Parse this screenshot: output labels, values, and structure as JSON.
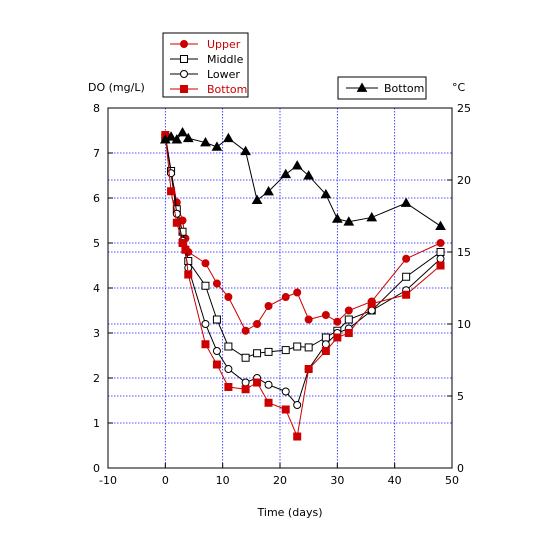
{
  "chart_data": {
    "type": "line",
    "xlabel": "Time (days)",
    "ylabel_left": "DO (mg/L)",
    "ylabel_right": "°C",
    "xlim": [
      -10,
      50
    ],
    "ylim_left": [
      0,
      8
    ],
    "ylim_right": [
      0,
      25
    ],
    "x_ticks": [
      "-10",
      "0",
      "10",
      "20",
      "30",
      "40",
      "50"
    ],
    "y_left_ticks": [
      "0",
      "1",
      "2",
      "3",
      "4",
      "5",
      "6",
      "7",
      "8"
    ],
    "y_right_ticks": [
      "0",
      "5",
      "10",
      "15",
      "20",
      "25"
    ],
    "grid": true,
    "legend_left": [
      {
        "label": "Upper",
        "marker": "filled-circle",
        "color": "#cc0000"
      },
      {
        "label": "Middle",
        "marker": "open-square",
        "color": "#000000"
      },
      {
        "label": "Lower",
        "marker": "open-circle",
        "color": "#000000"
      },
      {
        "label": "Bottom",
        "marker": "filled-square",
        "color": "#cc0000"
      }
    ],
    "legend_right": [
      {
        "label": "Bottom",
        "marker": "filled-triangle",
        "color": "#000000"
      }
    ],
    "series": [
      {
        "name": "Upper",
        "axis": "left",
        "marker": "filled-circle",
        "color": "#cc0000",
        "x": [
          0,
          1,
          2,
          3,
          3.5,
          4,
          7,
          9,
          11,
          14,
          16,
          18,
          21,
          23,
          25,
          28,
          30,
          32,
          36,
          42,
          48
        ],
        "y": [
          7.4,
          6.6,
          5.9,
          5.5,
          5.1,
          4.8,
          4.55,
          4.1,
          3.8,
          3.05,
          3.2,
          3.6,
          3.8,
          3.9,
          3.3,
          3.4,
          3.25,
          3.5,
          3.7,
          4.65,
          5.0
        ]
      },
      {
        "name": "Middle",
        "axis": "left",
        "marker": "open-square",
        "color": "#000000",
        "x": [
          0,
          1,
          2,
          3,
          4,
          7,
          9,
          11,
          14,
          16,
          18,
          21,
          23,
          25,
          28,
          30,
          32,
          36,
          42,
          48
        ],
        "y": [
          7.35,
          6.6,
          5.75,
          5.25,
          4.6,
          4.05,
          3.3,
          2.7,
          2.45,
          2.55,
          2.58,
          2.62,
          2.7,
          2.68,
          2.9,
          3.05,
          3.3,
          3.5,
          4.25,
          4.8
        ]
      },
      {
        "name": "Lower",
        "axis": "left",
        "marker": "open-circle",
        "color": "#000000",
        "x": [
          0,
          1,
          2,
          3,
          4,
          7,
          9,
          11,
          14,
          16,
          18,
          21,
          23,
          25,
          28,
          30,
          32,
          36,
          42,
          48
        ],
        "y": [
          7.35,
          6.55,
          5.65,
          5.05,
          4.45,
          3.2,
          2.6,
          2.2,
          1.9,
          2.0,
          1.85,
          1.7,
          1.4,
          2.2,
          2.75,
          3.0,
          3.1,
          3.5,
          3.95,
          4.65
        ]
      },
      {
        "name": "Bottom",
        "axis": "left",
        "marker": "filled-square",
        "color": "#cc0000",
        "x": [
          0,
          1,
          2,
          3,
          3.5,
          4,
          7,
          9,
          11,
          14,
          16,
          18,
          21,
          23,
          25,
          28,
          30,
          32,
          36,
          42,
          48
        ],
        "y": [
          7.4,
          6.15,
          5.45,
          5.0,
          4.85,
          4.3,
          2.75,
          2.3,
          1.8,
          1.75,
          1.9,
          1.45,
          1.3,
          0.7,
          2.2,
          2.6,
          2.9,
          3.0,
          3.65,
          3.85,
          4.5
        ]
      },
      {
        "name": "Bottom",
        "axis": "right",
        "marker": "filled-triangle",
        "color": "#000000",
        "x": [
          0,
          1,
          2,
          3,
          4,
          7,
          9,
          11,
          14,
          16,
          18,
          21,
          23,
          25,
          28,
          30,
          32,
          36,
          42,
          48
        ],
        "y": [
          22.8,
          23.0,
          22.8,
          23.3,
          22.9,
          22.6,
          22.3,
          22.9,
          22.0,
          18.6,
          19.2,
          20.4,
          21.0,
          20.3,
          19.0,
          17.3,
          17.1,
          17.4,
          18.4,
          16.8
        ]
      }
    ]
  }
}
